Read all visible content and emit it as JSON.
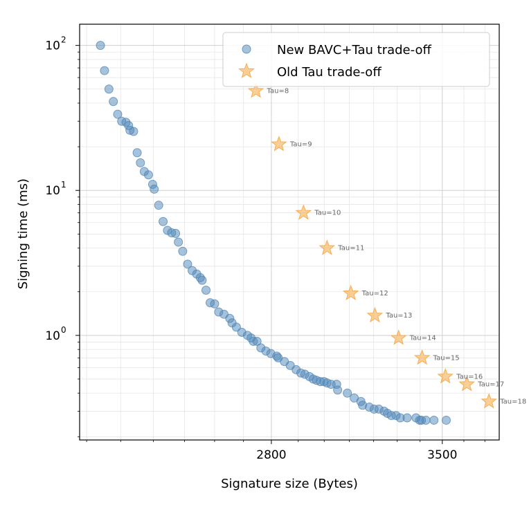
{
  "chart_data": {
    "type": "scatter",
    "xlabel": "Signature size (Bytes)",
    "ylabel": "Signing time (ms)",
    "xscale": "log",
    "yscale": "log",
    "xlim": [
      2180,
      3770
    ],
    "ylim": [
      0.19,
      140
    ],
    "xticks": [
      2800,
      3500
    ],
    "xtick_labels": [
      "2800",
      "3500"
    ],
    "yticks": [
      1,
      10,
      100
    ],
    "ytick_labels": [
      "10",
      "10",
      "10"
    ],
    "ytick_exponents": [
      "0",
      "1",
      "2"
    ],
    "grid": true,
    "legend_position": "top-right",
    "series": [
      {
        "name": "New BAVC+Tau trade-off",
        "marker": "circle",
        "color": "#4f86b7",
        "points": [
          [
            2240,
            100
          ],
          [
            2252,
            67
          ],
          [
            2265,
            50
          ],
          [
            2278,
            41
          ],
          [
            2291,
            33.5
          ],
          [
            2303,
            30
          ],
          [
            2316,
            29.5
          ],
          [
            2324,
            28
          ],
          [
            2328,
            26
          ],
          [
            2339,
            25.5
          ],
          [
            2350,
            18.2
          ],
          [
            2360,
            15.5
          ],
          [
            2372,
            13.5
          ],
          [
            2385,
            12.8
          ],
          [
            2398,
            11
          ],
          [
            2403,
            10.2
          ],
          [
            2417,
            7.9
          ],
          [
            2431,
            6.1
          ],
          [
            2445,
            5.3
          ],
          [
            2458,
            5.1
          ],
          [
            2471,
            5.05
          ],
          [
            2480,
            4.4
          ],
          [
            2494,
            3.8
          ],
          [
            2510,
            3.1
          ],
          [
            2525,
            2.8
          ],
          [
            2540,
            2.65
          ],
          [
            2552,
            2.5
          ],
          [
            2558,
            2.4
          ],
          [
            2571,
            2.05
          ],
          [
            2585,
            1.68
          ],
          [
            2600,
            1.65
          ],
          [
            2614,
            1.45
          ],
          [
            2632,
            1.4
          ],
          [
            2652,
            1.31
          ],
          [
            2660,
            1.22
          ],
          [
            2675,
            1.14
          ],
          [
            2694,
            1.05
          ],
          [
            2714,
            1.0
          ],
          [
            2727,
            0.96
          ],
          [
            2735,
            0.91
          ],
          [
            2748,
            0.91
          ],
          [
            2762,
            0.82
          ],
          [
            2780,
            0.78
          ],
          [
            2798,
            0.75
          ],
          [
            2820,
            0.72
          ],
          [
            2825,
            0.7
          ],
          [
            2848,
            0.66
          ],
          [
            2870,
            0.62
          ],
          [
            2892,
            0.58
          ],
          [
            2910,
            0.55
          ],
          [
            2925,
            0.54
          ],
          [
            2943,
            0.52
          ],
          [
            2957,
            0.5
          ],
          [
            2970,
            0.49
          ],
          [
            2985,
            0.48
          ],
          [
            2999,
            0.48
          ],
          [
            3011,
            0.47
          ],
          [
            3027,
            0.46
          ],
          [
            3049,
            0.46
          ],
          [
            3053,
            0.42
          ],
          [
            3092,
            0.4
          ],
          [
            3120,
            0.37
          ],
          [
            3147,
            0.35
          ],
          [
            3154,
            0.33
          ],
          [
            3182,
            0.32
          ],
          [
            3202,
            0.31
          ],
          [
            3222,
            0.31
          ],
          [
            3244,
            0.3
          ],
          [
            3258,
            0.29
          ],
          [
            3275,
            0.28
          ],
          [
            3295,
            0.28
          ],
          [
            3313,
            0.27
          ],
          [
            3343,
            0.27
          ],
          [
            3382,
            0.27
          ],
          [
            3398,
            0.26
          ],
          [
            3406,
            0.26
          ],
          [
            3426,
            0.26
          ],
          [
            3462,
            0.26
          ],
          [
            3518,
            0.26
          ]
        ]
      },
      {
        "name": "Old Tau trade-off",
        "marker": "star",
        "color": "#f5a742",
        "points": [
          [
            2744,
            48.5
          ],
          [
            2828,
            20.8
          ],
          [
            2920,
            7.0
          ],
          [
            3011,
            4.0
          ],
          [
            3106,
            1.95
          ],
          [
            3205,
            1.37
          ],
          [
            3306,
            0.96
          ],
          [
            3409,
            0.7
          ],
          [
            3514,
            0.52
          ],
          [
            3614,
            0.46
          ],
          [
            3720,
            0.35
          ]
        ],
        "labels": [
          "Tau=8",
          "Tau=9",
          "Tau=10",
          "Tau=11",
          "Tau=12",
          "Tau=13",
          "Tau=14",
          "Tau=15",
          "Tau=16",
          "Tau=17",
          "Tau=18"
        ]
      }
    ]
  }
}
